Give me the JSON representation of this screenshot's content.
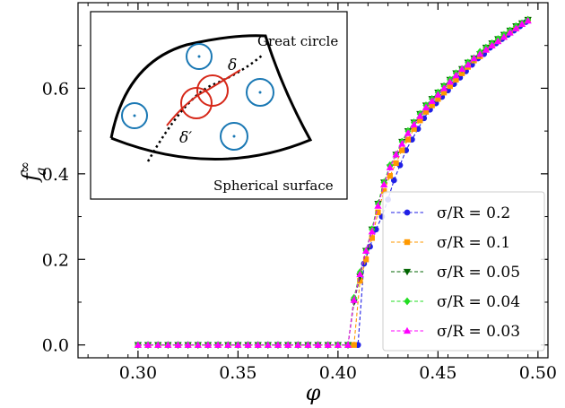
{
  "chart_data": {
    "type": "line",
    "xlabel": "φ",
    "ylabel": {
      "base": "f",
      "sup": "∞",
      "sub": "a"
    },
    "xlim": [
      0.27,
      0.505
    ],
    "ylim": [
      -0.03,
      0.8
    ],
    "xticks": [
      "0.30",
      "0.35",
      "0.40",
      "0.45",
      "0.50"
    ],
    "yticks": [
      "0.0",
      "0.2",
      "0.4",
      "0.6"
    ],
    "xtick_values": [
      0.3,
      0.35,
      0.4,
      0.45,
      0.5
    ],
    "ytick_values": [
      0.0,
      0.2,
      0.4,
      0.6
    ],
    "grid": false,
    "legend_position": "lower-right",
    "series": [
      {
        "name": "σ/R = 0.2",
        "color": "#1f1fe6",
        "marker": "circle",
        "x": [
          0.3,
          0.305,
          0.31,
          0.315,
          0.32,
          0.325,
          0.33,
          0.335,
          0.34,
          0.345,
          0.35,
          0.355,
          0.36,
          0.365,
          0.37,
          0.375,
          0.38,
          0.385,
          0.39,
          0.395,
          0.4,
          0.405,
          0.41,
          0.413,
          0.416,
          0.419,
          0.422,
          0.425,
          0.428,
          0.431,
          0.434,
          0.437,
          0.44,
          0.443,
          0.446,
          0.449,
          0.452,
          0.455,
          0.458,
          0.461,
          0.464,
          0.467,
          0.47,
          0.473,
          0.476,
          0.479,
          0.482,
          0.485,
          0.488,
          0.491,
          0.494
        ],
        "y": [
          0,
          0,
          0,
          0,
          0,
          0,
          0,
          0,
          0,
          0,
          0,
          0,
          0,
          0,
          0,
          0,
          0,
          0,
          0,
          0,
          0,
          0,
          0,
          0.19,
          0.23,
          0.27,
          0.3,
          0.34,
          0.385,
          0.42,
          0.455,
          0.48,
          0.505,
          0.53,
          0.55,
          0.565,
          0.58,
          0.595,
          0.61,
          0.625,
          0.64,
          0.655,
          0.67,
          0.68,
          0.695,
          0.705,
          0.715,
          0.725,
          0.735,
          0.745,
          0.755
        ]
      },
      {
        "name": "σ/R = 0.1",
        "color": "#ff9900",
        "marker": "square",
        "x": [
          0.3,
          0.305,
          0.31,
          0.315,
          0.32,
          0.325,
          0.33,
          0.335,
          0.34,
          0.345,
          0.35,
          0.355,
          0.36,
          0.365,
          0.37,
          0.375,
          0.38,
          0.385,
          0.39,
          0.395,
          0.4,
          0.405,
          0.408,
          0.411,
          0.414,
          0.417,
          0.42,
          0.423,
          0.426,
          0.429,
          0.432,
          0.435,
          0.438,
          0.441,
          0.444,
          0.447,
          0.45,
          0.453,
          0.456,
          0.459,
          0.462,
          0.465,
          0.468,
          0.471,
          0.474,
          0.477,
          0.48,
          0.483,
          0.486,
          0.489,
          0.492,
          0.495
        ],
        "y": [
          0,
          0,
          0,
          0,
          0,
          0,
          0,
          0,
          0,
          0,
          0,
          0,
          0,
          0,
          0,
          0,
          0,
          0,
          0,
          0,
          0,
          0,
          0,
          0.15,
          0.2,
          0.25,
          0.31,
          0.36,
          0.395,
          0.425,
          0.455,
          0.48,
          0.505,
          0.525,
          0.545,
          0.56,
          0.575,
          0.59,
          0.605,
          0.62,
          0.635,
          0.65,
          0.665,
          0.675,
          0.69,
          0.7,
          0.71,
          0.72,
          0.73,
          0.74,
          0.75,
          0.76
        ]
      },
      {
        "name": "σ/R = 0.05",
        "color": "#006400",
        "marker": "triangle-down",
        "x": [
          0.3,
          0.305,
          0.31,
          0.315,
          0.32,
          0.325,
          0.33,
          0.335,
          0.34,
          0.345,
          0.35,
          0.355,
          0.36,
          0.365,
          0.37,
          0.375,
          0.38,
          0.385,
          0.39,
          0.395,
          0.4,
          0.405,
          0.408,
          0.411,
          0.414,
          0.417,
          0.42,
          0.423,
          0.426,
          0.429,
          0.432,
          0.435,
          0.438,
          0.441,
          0.444,
          0.447,
          0.45,
          0.453,
          0.456,
          0.459,
          0.462,
          0.465,
          0.468,
          0.471,
          0.474,
          0.477,
          0.48,
          0.483,
          0.486,
          0.489,
          0.492,
          0.495
        ],
        "y": [
          0,
          0,
          0,
          0,
          0,
          0,
          0,
          0,
          0,
          0,
          0,
          0,
          0,
          0,
          0,
          0,
          0,
          0,
          0,
          0,
          0,
          0,
          0.1,
          0.16,
          0.22,
          0.27,
          0.33,
          0.38,
          0.415,
          0.445,
          0.475,
          0.5,
          0.52,
          0.54,
          0.56,
          0.575,
          0.59,
          0.605,
          0.62,
          0.635,
          0.645,
          0.66,
          0.67,
          0.68,
          0.695,
          0.705,
          0.715,
          0.725,
          0.735,
          0.745,
          0.752,
          0.76
        ]
      },
      {
        "name": "σ/R = 0.04",
        "color": "#22dd22",
        "marker": "diamond",
        "x": [
          0.3,
          0.305,
          0.31,
          0.315,
          0.32,
          0.325,
          0.33,
          0.335,
          0.34,
          0.345,
          0.35,
          0.355,
          0.36,
          0.365,
          0.37,
          0.375,
          0.38,
          0.385,
          0.39,
          0.395,
          0.4,
          0.405,
          0.408,
          0.411,
          0.414,
          0.417,
          0.42,
          0.423,
          0.426,
          0.429,
          0.432,
          0.435,
          0.438,
          0.441,
          0.444,
          0.447,
          0.45,
          0.453,
          0.456,
          0.459,
          0.462,
          0.465,
          0.468,
          0.471,
          0.474,
          0.477,
          0.48,
          0.483,
          0.486,
          0.489,
          0.492,
          0.495
        ],
        "y": [
          0,
          0,
          0,
          0,
          0,
          0,
          0,
          0,
          0,
          0,
          0,
          0,
          0,
          0,
          0,
          0,
          0,
          0,
          0,
          0,
          0,
          0,
          0.11,
          0.17,
          0.22,
          0.27,
          0.33,
          0.38,
          0.42,
          0.445,
          0.475,
          0.5,
          0.52,
          0.54,
          0.56,
          0.575,
          0.59,
          0.605,
          0.62,
          0.635,
          0.645,
          0.66,
          0.67,
          0.685,
          0.695,
          0.705,
          0.715,
          0.725,
          0.735,
          0.745,
          0.752,
          0.76
        ]
      },
      {
        "name": "σ/R = 0.03",
        "color": "#ff00ff",
        "marker": "triangle-up",
        "x": [
          0.3,
          0.305,
          0.31,
          0.315,
          0.32,
          0.325,
          0.33,
          0.335,
          0.34,
          0.345,
          0.35,
          0.355,
          0.36,
          0.365,
          0.37,
          0.375,
          0.38,
          0.385,
          0.39,
          0.395,
          0.4,
          0.405,
          0.408,
          0.411,
          0.414,
          0.417,
          0.42,
          0.423,
          0.426,
          0.429,
          0.432,
          0.435,
          0.438,
          0.441,
          0.444,
          0.447,
          0.45,
          0.453,
          0.456,
          0.459,
          0.462,
          0.465,
          0.468,
          0.471,
          0.474,
          0.477,
          0.48,
          0.483,
          0.486,
          0.489,
          0.492,
          0.495
        ],
        "y": [
          0,
          0,
          0,
          0,
          0,
          0,
          0,
          0,
          0,
          0,
          0,
          0,
          0,
          0,
          0,
          0,
          0,
          0,
          0,
          0,
          0,
          0,
          0.105,
          0.165,
          0.22,
          0.265,
          0.325,
          0.375,
          0.415,
          0.445,
          0.47,
          0.495,
          0.515,
          0.535,
          0.555,
          0.57,
          0.585,
          0.6,
          0.615,
          0.63,
          0.645,
          0.655,
          0.67,
          0.68,
          0.69,
          0.7,
          0.71,
          0.72,
          0.73,
          0.74,
          0.75,
          0.758
        ]
      }
    ],
    "inset": {
      "great_circle_label": "Great circle",
      "surface_label": "Spherical surface",
      "delta_label": "δ",
      "delta_prime_label": "δ′"
    }
  }
}
